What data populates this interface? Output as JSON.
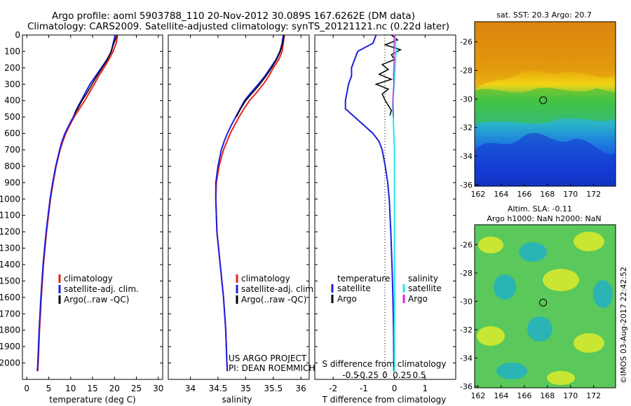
{
  "title_line1": "Argo profile: aoml 5903788_110 20-Nov-2012 30.089S 167.6262E (DM data)",
  "title_line2": "Climatology: CARS2009. Satellite-adjusted climatology: synTS_20121121.nc (0.22d later)",
  "stamp": "©IMOS 03-Aug-2017 22:42:52",
  "project_line1": "US ARGO PROJECT",
  "project_line2": "PI: DEAN ROEMMICH",
  "colors": {
    "climatology": "#e8231e",
    "satellite": "#1e1ee0",
    "argo": "#000000",
    "sat_salinity": "#20e8e8",
    "argo_salinity": "#e020e0"
  },
  "chart_data": [
    {
      "type": "line",
      "id": "temperature",
      "xlabel": "temperature (deg C)",
      "ylabel": "",
      "xlim": [
        -1,
        31
      ],
      "ylim": [
        2100,
        0
      ],
      "xticks": [
        0,
        5,
        10,
        15,
        20,
        25,
        30
      ],
      "yticks": [
        0,
        100,
        200,
        300,
        400,
        500,
        600,
        700,
        800,
        900,
        1000,
        1100,
        1200,
        1300,
        1400,
        1500,
        1600,
        1700,
        1800,
        1900,
        2000
      ],
      "legend": [
        "climatology",
        "satellite-adj. clim.",
        "Argo(..raw -QC)"
      ],
      "series": [
        {
          "name": "climatology",
          "depth": [
            0,
            50,
            100,
            150,
            200,
            250,
            300,
            350,
            400,
            450,
            500,
            550,
            600,
            650,
            700,
            800,
            900,
            1000,
            1200,
            1400,
            1600,
            1800,
            2000,
            2050
          ],
          "values": [
            20.7,
            20.4,
            19.7,
            18.7,
            17.6,
            16.4,
            15.4,
            14.3,
            13.2,
            12.0,
            10.8,
            9.8,
            8.9,
            8.2,
            7.6,
            6.7,
            6.0,
            5.4,
            4.5,
            3.8,
            3.3,
            2.9,
            2.6,
            2.5
          ]
        },
        {
          "name": "satellite-adj. clim.",
          "depth": [
            0,
            50,
            100,
            150,
            200,
            250,
            300,
            350,
            400,
            450,
            500,
            550,
            600,
            650,
            700,
            800,
            900,
            1000,
            1200,
            1400,
            1600,
            1800,
            2000,
            2050
          ],
          "values": [
            20.2,
            19.7,
            19.3,
            18.3,
            17.0,
            15.7,
            14.4,
            13.4,
            12.4,
            11.4,
            10.6,
            9.6,
            8.7,
            8.0,
            7.5,
            6.6,
            5.9,
            5.3,
            4.4,
            3.7,
            3.2,
            2.8,
            2.5,
            2.4
          ]
        },
        {
          "name": "Argo(..raw -QC)",
          "depth": [
            0,
            50,
            100,
            150,
            200,
            250,
            300,
            350,
            400,
            450,
            480
          ],
          "values": [
            20.6,
            19.9,
            19.2,
            18.4,
            17.2,
            16.0,
            14.9,
            13.8,
            12.6,
            11.6,
            10.9
          ]
        }
      ]
    },
    {
      "type": "line",
      "id": "salinity",
      "xlabel": "salinity",
      "ylabel": "",
      "xlim": [
        33.6,
        36.15
      ],
      "ylim": [
        2100,
        0
      ],
      "xticks": [
        34,
        34.5,
        35,
        35.5,
        36
      ],
      "legend": [
        "climatology",
        "satellite-adj. clim.",
        "Argo(..raw -QC)"
      ],
      "series": [
        {
          "name": "climatology",
          "depth": [
            0,
            50,
            100,
            150,
            200,
            250,
            300,
            350,
            400,
            450,
            500,
            550,
            600,
            650,
            700,
            800,
            900,
            1000,
            1200,
            1400,
            1600,
            1800,
            2000,
            2050
          ],
          "values": [
            35.7,
            35.68,
            35.66,
            35.6,
            35.5,
            35.42,
            35.32,
            35.2,
            35.07,
            34.97,
            34.88,
            34.8,
            34.72,
            34.66,
            34.6,
            34.52,
            34.47,
            34.46,
            34.48,
            34.54,
            34.6,
            34.64,
            34.66,
            34.67
          ]
        },
        {
          "name": "satellite-adj. clim.",
          "depth": [
            0,
            50,
            100,
            150,
            200,
            250,
            300,
            350,
            400,
            450,
            500,
            550,
            600,
            650,
            700,
            800,
            900,
            1000,
            1200,
            1400,
            1600,
            1800,
            2000,
            2050
          ],
          "values": [
            35.68,
            35.66,
            35.62,
            35.55,
            35.45,
            35.35,
            35.23,
            35.1,
            34.98,
            34.9,
            34.82,
            34.74,
            34.67,
            34.61,
            34.56,
            34.5,
            34.46,
            34.46,
            34.48,
            34.54,
            34.6,
            34.64,
            34.66,
            34.67
          ]
        },
        {
          "name": "Argo(..raw -QC)",
          "depth": [
            0,
            50,
            100,
            150,
            200,
            250,
            300,
            350,
            400,
            450,
            500
          ],
          "values": [
            35.7,
            35.67,
            35.63,
            35.56,
            35.47,
            35.37,
            35.26,
            35.13,
            35.0,
            34.91,
            34.83
          ]
        }
      ]
    },
    {
      "type": "line",
      "id": "difference",
      "xlabel": "T difference from climatology",
      "xlabel_top": "S difference from climatology",
      "xlim": [
        -2.6,
        2.0
      ],
      "ylim": [
        2100,
        0
      ],
      "xticks": [
        -2,
        -1,
        0,
        1
      ],
      "s_ticks": [
        -0.5,
        -0.25,
        0,
        0.25,
        0.5
      ],
      "legend_t_title": "temperature",
      "legend_s_title": "salinity",
      "legend": [
        "satellite",
        "Argo",
        "satellite",
        "Argo"
      ],
      "series": [
        {
          "name": "temperature satellite",
          "depth": [
            0,
            50,
            100,
            150,
            200,
            250,
            300,
            350,
            400,
            450,
            500,
            550,
            600,
            650,
            700,
            800,
            900,
            1000,
            1200,
            1400,
            1600,
            1800,
            2000,
            2050
          ],
          "values": [
            -0.6,
            -0.7,
            -1.2,
            -1.3,
            -1.4,
            -1.4,
            -1.5,
            -1.55,
            -1.6,
            -1.6,
            -1.3,
            -1.0,
            -0.7,
            -0.5,
            -0.4,
            -0.3,
            -0.22,
            -0.17,
            -0.12,
            -0.08,
            -0.05,
            -0.03,
            -0.02,
            -0.02
          ]
        },
        {
          "name": "temperature Argo",
          "depth": [
            0,
            30,
            60,
            90,
            120,
            150,
            180,
            210,
            240,
            270,
            300,
            330,
            360,
            400,
            430,
            460,
            490
          ],
          "values": [
            -0.1,
            0.1,
            -0.3,
            0.2,
            -0.1,
            0.0,
            -0.4,
            -0.2,
            -0.5,
            -0.1,
            -0.6,
            -0.2,
            -0.4,
            -0.3,
            -0.2,
            -0.1,
            -0.15
          ]
        },
        {
          "name": "salinity satellite",
          "depth": [
            0,
            100,
            200,
            300,
            400,
            450,
            500,
            600,
            700,
            800,
            1000,
            1200,
            1400,
            1600,
            1800,
            2000,
            2050
          ],
          "values": [
            0.02,
            0.05,
            0.02,
            -0.01,
            -0.05,
            -0.06,
            -0.04,
            -0.02,
            0.0,
            0.0,
            0.0,
            0.0,
            0.0,
            0.0,
            0.0,
            0.0,
            0.0
          ]
        },
        {
          "name": "salinity Argo",
          "depth": [
            0,
            100,
            150,
            200,
            250,
            300,
            350,
            400,
            450,
            500
          ],
          "values": [
            0.0,
            -0.02,
            -0.01,
            -0.02,
            -0.03,
            -0.02,
            -0.04,
            -0.05,
            -0.04,
            -0.03
          ]
        }
      ]
    },
    {
      "type": "heatmap",
      "id": "sst_map",
      "title": "sat. SST: 20.3  Argo: 20.7",
      "xlim": [
        161.7,
        173.9
      ],
      "ylim": [
        -36.1,
        -24.6
      ],
      "xticks": [
        162,
        164,
        166,
        168,
        170,
        172
      ],
      "yticks": [
        -26,
        -28,
        -30,
        -32,
        -34,
        -36
      ],
      "profile_location": [
        167.6262,
        -30.089
      ]
    },
    {
      "type": "heatmap",
      "id": "sla_map",
      "title": "Altim. SLA: -0.11",
      "subtitle": "Argo h1000: NaN h2000: NaN",
      "xlim": [
        161.7,
        173.9
      ],
      "ylim": [
        -36.1,
        -24.6
      ],
      "xticks": [
        162,
        164,
        166,
        168,
        170,
        172
      ],
      "yticks": [
        -26,
        -28,
        -30,
        -32,
        -34,
        -36
      ],
      "profile_location": [
        167.6262,
        -30.089
      ]
    }
  ]
}
